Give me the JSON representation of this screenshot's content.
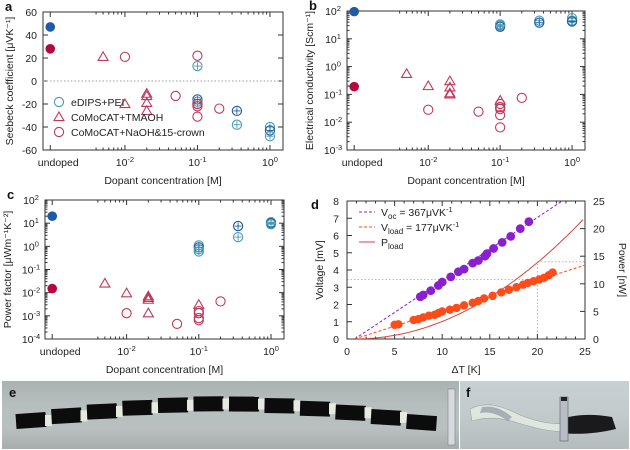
{
  "figure": {
    "panel_letters": {
      "a": "a",
      "b": "b",
      "c": "c",
      "d": "d",
      "e": "e",
      "f": "f"
    }
  },
  "colors": {
    "edips": "#4a9ab5",
    "edips_dark": "#1f5a9e",
    "comocat": "#c0395a",
    "comocat_fill": "#b5083f",
    "edips_fill": "#1f5aa8",
    "voc": "#8a1fd0",
    "vload": "#ff4a1a",
    "pload": "#d8433c",
    "axis": "#333333"
  },
  "chart_data": [
    {
      "id": "a",
      "type": "scatter",
      "title": "",
      "xlabel": "Dopant concentration [M]",
      "ylabel": "Seebeck coefficient [μVK⁻¹]",
      "xscale": "log",
      "xticks": [
        "undoped",
        "10⁻²",
        "10⁻¹",
        "10⁰"
      ],
      "ylim": [
        -60,
        60
      ],
      "yticks": [
        -60,
        -40,
        -20,
        0,
        20,
        40,
        60
      ],
      "zero_line": true,
      "legend": {
        "placement": "bottom-left",
        "entries": [
          "eDIPS+PEI",
          "CoMoCAT+TMAOH",
          "CoMoCAT+NaOH&15-crown"
        ]
      },
      "series": [
        {
          "name": "eDIPS+PEI",
          "marker": "circle-open",
          "points": [
            [
              0.1,
              13
            ],
            [
              0.1,
              -16
            ],
            [
              0.1,
              -18
            ],
            [
              0.1,
              -20
            ],
            [
              0.35,
              -26
            ],
            [
              0.35,
              -38
            ],
            [
              1.0,
              -40
            ],
            [
              1.0,
              -43
            ],
            [
              1.0,
              -48
            ]
          ]
        },
        {
          "name": "CoMoCAT+TMAOH",
          "marker": "triangle-open",
          "points": [
            [
              0.005,
              21
            ],
            [
              0.01,
              -20
            ],
            [
              0.02,
              -11
            ],
            [
              0.02,
              -13
            ],
            [
              0.02,
              -19
            ],
            [
              0.02,
              -26
            ]
          ]
        },
        {
          "name": "CoMoCAT+NaOH&15-crown",
          "marker": "circle-open",
          "points": [
            [
              0.01,
              21
            ],
            [
              0.05,
              -13
            ],
            [
              0.1,
              22
            ],
            [
              0.1,
              -20
            ],
            [
              0.1,
              -22
            ],
            [
              0.1,
              -31
            ],
            [
              0.2,
              -24
            ]
          ]
        },
        {
          "name": "undoped eDIPS",
          "marker": "circle-filled",
          "points": [
            [
              "undoped",
              47
            ]
          ]
        },
        {
          "name": "undoped CoMoCAT",
          "marker": "circle-filled",
          "points": [
            [
              "undoped",
              28
            ]
          ]
        }
      ]
    },
    {
      "id": "b",
      "type": "scatter",
      "title": "",
      "xlabel": "Dopant concentration [M]",
      "ylabel": "Electrical conductivity [Scm⁻¹]",
      "xscale": "log",
      "yscale": "log",
      "xticks": [
        "undoped",
        "10⁻²",
        "10⁻¹",
        "10⁰"
      ],
      "ylim": [
        0.001,
        100
      ],
      "yticks": [
        "10⁻³",
        "10⁻²",
        "10⁻¹",
        "10⁰",
        "10¹",
        "10²"
      ],
      "series": [
        {
          "name": "eDIPS+PEI",
          "marker": "circle-open",
          "points": [
            [
              0.1,
              30
            ],
            [
              0.1,
              27
            ],
            [
              0.1,
              33
            ],
            [
              0.35,
              45
            ],
            [
              0.35,
              38
            ],
            [
              1.0,
              55
            ],
            [
              1.0,
              45
            ],
            [
              1.0,
              42
            ]
          ]
        },
        {
          "name": "CoMoCAT+TMAOH",
          "marker": "triangle-open",
          "points": [
            [
              0.005,
              0.55
            ],
            [
              0.01,
              0.2
            ],
            [
              0.02,
              0.3
            ],
            [
              0.02,
              0.18
            ],
            [
              0.02,
              0.11
            ],
            [
              0.02,
              0.1
            ],
            [
              0.1,
              0.06
            ]
          ]
        },
        {
          "name": "CoMoCAT+NaOH&15-crown",
          "marker": "circle-open",
          "points": [
            [
              0.01,
              0.028
            ],
            [
              0.05,
              0.024
            ],
            [
              0.1,
              0.045
            ],
            [
              0.1,
              0.035
            ],
            [
              0.1,
              0.03
            ],
            [
              0.1,
              0.018
            ],
            [
              0.1,
              0.0065
            ],
            [
              0.2,
              0.075
            ]
          ]
        },
        {
          "name": "undoped eDIPS",
          "marker": "circle-filled",
          "points": [
            [
              "undoped",
              95
            ]
          ]
        },
        {
          "name": "undoped CoMoCAT",
          "marker": "circle-filled",
          "points": [
            [
              "undoped",
              0.19
            ]
          ]
        }
      ]
    },
    {
      "id": "c",
      "type": "scatter",
      "title": "",
      "xlabel": "Dopant concentration [M]",
      "ylabel": "Power factor [μWm⁻¹K⁻²]",
      "xscale": "log",
      "yscale": "log",
      "xticks": [
        "undoped",
        "10⁻²",
        "10⁻¹",
        "10⁰"
      ],
      "ylim": [
        0.0001,
        100
      ],
      "yticks": [
        "10⁻⁴",
        "10⁻³",
        "10⁻²",
        "10⁻¹",
        "10⁰",
        "10¹",
        "10²"
      ],
      "series": [
        {
          "name": "eDIPS+PEI",
          "marker": "circle-open",
          "points": [
            [
              0.1,
              1.1
            ],
            [
              0.1,
              0.9
            ],
            [
              0.1,
              0.75
            ],
            [
              0.1,
              0.6
            ],
            [
              0.35,
              7.5
            ],
            [
              0.35,
              2.5
            ],
            [
              1.0,
              11
            ],
            [
              1.0,
              10
            ],
            [
              1.0,
              9
            ]
          ]
        },
        {
          "name": "CoMoCAT+TMAOH",
          "marker": "triangle-open",
          "points": [
            [
              0.005,
              0.025
            ],
            [
              0.01,
              0.0095
            ],
            [
              0.02,
              0.007
            ],
            [
              0.02,
              0.006
            ],
            [
              0.02,
              0.005
            ],
            [
              0.02,
              0.0013
            ],
            [
              0.1,
              0.003
            ]
          ]
        },
        {
          "name": "CoMoCAT+NaOH&15-crown",
          "marker": "circle-open",
          "points": [
            [
              0.01,
              0.0013
            ],
            [
              0.05,
              0.00045
            ],
            [
              0.1,
              0.0016
            ],
            [
              0.1,
              0.0013
            ],
            [
              0.1,
              0.0008
            ],
            [
              0.1,
              0.00065
            ],
            [
              0.2,
              0.0042
            ]
          ]
        },
        {
          "name": "undoped eDIPS",
          "marker": "circle-filled",
          "points": [
            [
              "undoped",
              20
            ]
          ]
        },
        {
          "name": "undoped CoMoCAT",
          "marker": "circle-filled",
          "points": [
            [
              "undoped",
              0.015
            ]
          ]
        }
      ]
    },
    {
      "id": "d",
      "type": "line",
      "title": "",
      "xlabel": "ΔT [K]",
      "ylabel": "Voltage [mV]",
      "y2label": "Power [nW]",
      "xlim": [
        0,
        25
      ],
      "ylim": [
        0,
        8
      ],
      "y2lim": [
        0,
        25
      ],
      "xticks": [
        0,
        5,
        10,
        15,
        20,
        25
      ],
      "yticks": [
        0,
        1,
        2,
        3,
        4,
        5,
        6,
        7,
        8
      ],
      "y2ticks": [
        0,
        5,
        10,
        15,
        20,
        25
      ],
      "legend": {
        "placement": "top-left",
        "entries": [
          "V_oc = 367μVK⁻¹",
          "V_load = 177μVK⁻¹",
          "P_load"
        ]
      },
      "guide_lines": {
        "x": 20,
        "voltage": 3.45,
        "power": 14
      },
      "series": [
        {
          "name": "V_oc",
          "slope_mV_per_K": 0.367,
          "x_intercept": 0.8,
          "points": [
            [
              7.7,
              2.45
            ],
            [
              8.0,
              2.55
            ],
            [
              8.8,
              2.8
            ],
            [
              9.6,
              3.1
            ],
            [
              10.0,
              3.3
            ],
            [
              10.9,
              3.6
            ],
            [
              11.7,
              3.9
            ],
            [
              12.3,
              4.05
            ],
            [
              13.2,
              4.4
            ],
            [
              13.8,
              4.55
            ],
            [
              14.5,
              4.8
            ],
            [
              14.7,
              4.95
            ],
            [
              15.4,
              5.25
            ],
            [
              16.3,
              5.6
            ],
            [
              17.2,
              5.95
            ],
            [
              18.2,
              6.4
            ],
            [
              19.1,
              6.8
            ]
          ]
        },
        {
          "name": "V_load",
          "slope_mV_per_K": 0.177,
          "x_intercept": 0.8,
          "points": [
            [
              5.0,
              0.82
            ],
            [
              5.4,
              0.85
            ],
            [
              7.0,
              1.1
            ],
            [
              7.5,
              1.15
            ],
            [
              8.0,
              1.25
            ],
            [
              8.6,
              1.35
            ],
            [
              9.2,
              1.4
            ],
            [
              9.6,
              1.5
            ],
            [
              10.0,
              1.6
            ],
            [
              10.8,
              1.7
            ],
            [
              11.5,
              1.8
            ],
            [
              12.3,
              1.95
            ],
            [
              13.2,
              2.1
            ],
            [
              13.8,
              2.2
            ],
            [
              14.4,
              2.35
            ],
            [
              15.3,
              2.5
            ],
            [
              16.2,
              2.7
            ],
            [
              17.0,
              2.85
            ],
            [
              17.8,
              3.0
            ],
            [
              18.5,
              3.15
            ],
            [
              19.0,
              3.25
            ],
            [
              19.6,
              3.35
            ],
            [
              20.2,
              3.45
            ],
            [
              20.7,
              3.55
            ],
            [
              21.2,
              3.7
            ],
            [
              21.6,
              3.85
            ]
          ]
        },
        {
          "name": "P_load",
          "curve": "quadratic",
          "power_nW_at_25K": 22
        }
      ]
    }
  ],
  "photos": {
    "e": {
      "description": "flexible thermoelectric module strip of black CNT films connected by silver electrodes"
    },
    "f": {
      "description": "module twisted/bent to show flexibility"
    }
  }
}
